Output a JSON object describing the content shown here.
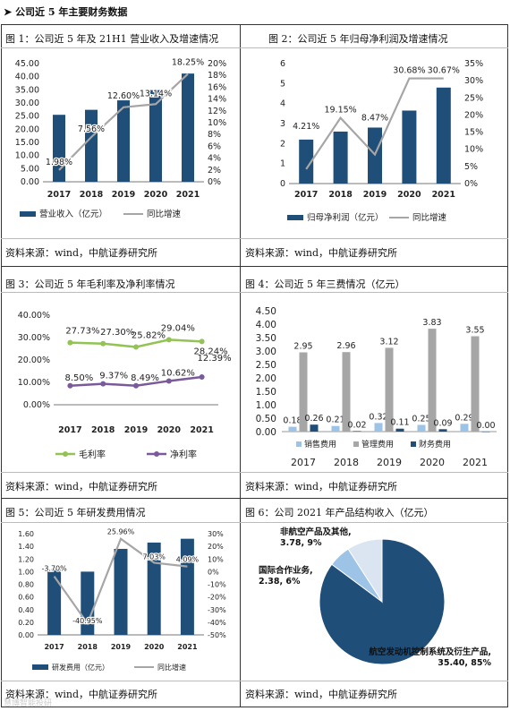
{
  "section": {
    "marker": "➤",
    "title": "公司近 5 年主要财务数据"
  },
  "source_text": "资料来源：wind，中航证券研究所",
  "watermark": "慧博智能投研",
  "colors": {
    "navy": "#1f4e79",
    "gray": "#a6a6a6",
    "green": "#92c353",
    "purple": "#7a5a9a",
    "lightblue": "#9dc3e6",
    "pie_dark": "#1f4e79",
    "pie_mid": "#9dc3e6",
    "pie_light": "#dbe5f1"
  },
  "chart_data": [
    {
      "id": "c1",
      "type": "bar",
      "title": "图 1：公司近 5 年及 21H1 营业收入及增速情况",
      "categories": [
        "2017",
        "2018",
        "2019",
        "2020",
        "2021"
      ],
      "series": [
        {
          "name": "营业收入（亿元）",
          "kind": "bar",
          "axis": "left",
          "values": [
            25.5,
            27.4,
            31.0,
            34.9,
            41.2
          ]
        },
        {
          "name": "同比增速",
          "kind": "line",
          "axis": "right",
          "values": [
            1.98,
            7.56,
            12.6,
            13.14,
            18.25
          ]
        }
      ],
      "data_labels": [
        "1.98%",
        "7.56%",
        "12.60%",
        "13.14%",
        "18.25%"
      ],
      "yticks_left": [
        "0.00",
        "5.00",
        "10.00",
        "15.00",
        "20.00",
        "25.00",
        "30.00",
        "35.00",
        "40.00",
        "45.00"
      ],
      "ylim_left": [
        0,
        45
      ],
      "yticks_right": [
        "0%",
        "2%",
        "4%",
        "6%",
        "8%",
        "10%",
        "12%",
        "14%",
        "16%",
        "18%",
        "20%"
      ],
      "ylim_right": [
        0,
        20
      ]
    },
    {
      "id": "c2",
      "type": "bar",
      "title": "图 2：公司近 5 年归母净利润及增速情况",
      "categories": [
        "2017",
        "2018",
        "2019",
        "2020",
        "2021"
      ],
      "series": [
        {
          "name": "归母净利润（亿元）",
          "kind": "bar",
          "axis": "left",
          "values": [
            2.2,
            2.6,
            2.8,
            3.65,
            4.8
          ]
        },
        {
          "name": "同比增速",
          "kind": "line",
          "axis": "right",
          "values": [
            4.21,
            19.15,
            8.47,
            30.68,
            30.67
          ]
        }
      ],
      "data_labels": [
        "4.21%",
        "19.15%",
        "8.47%",
        "30.68%",
        "30.67%"
      ],
      "yticks_left": [
        "0",
        "1",
        "2",
        "3",
        "4",
        "5",
        "6"
      ],
      "ylim_left": [
        0,
        6
      ],
      "yticks_right": [
        "0%",
        "5%",
        "10%",
        "15%",
        "20%",
        "25%",
        "30%",
        "35%"
      ],
      "ylim_right": [
        0,
        35
      ]
    },
    {
      "id": "c3",
      "type": "line",
      "title": "图 3：公司近 5 年毛利率及净利率情况",
      "categories": [
        "2017",
        "2018",
        "2019",
        "2020",
        "2021"
      ],
      "series": [
        {
          "name": "毛利率",
          "values": [
            27.73,
            27.3,
            25.82,
            29.04,
            28.24
          ]
        },
        {
          "name": "净利率",
          "values": [
            8.5,
            9.37,
            8.49,
            10.62,
            12.39
          ]
        }
      ],
      "data_labels": [
        [
          "27.73%",
          "27.30%",
          "25.82%",
          "29.04%",
          "28.24%"
        ],
        [
          "8.50%",
          "9.37%",
          "8.49%",
          "10.62%",
          "12.39%"
        ]
      ],
      "yticks": [
        "0.00%",
        "10.00%",
        "20.00%",
        "30.00%",
        "40.00%"
      ],
      "ylim": [
        0,
        40
      ]
    },
    {
      "id": "c4",
      "type": "bar",
      "title": "图 4：公司近 5 年三费情况（亿元）",
      "categories": [
        "2017",
        "2018",
        "2019",
        "2020",
        "2021"
      ],
      "series": [
        {
          "name": "销售费用",
          "values": [
            0.18,
            0.21,
            0.32,
            0.25,
            0.29
          ]
        },
        {
          "name": "管理费用",
          "values": [
            2.95,
            2.96,
            3.12,
            3.83,
            3.55
          ]
        },
        {
          "name": "财务费用",
          "values": [
            0.26,
            0.02,
            0.11,
            0.09,
            0.0
          ]
        }
      ],
      "data_labels": [
        [
          "0.18",
          "0.21",
          "0.32",
          "0.25",
          "0.29"
        ],
        [
          "2.95",
          "2.96",
          "3.12",
          "3.83",
          "3.55"
        ],
        [
          "0.26",
          "0.02",
          "0.11",
          "0.09",
          "0.00"
        ]
      ],
      "yticks": [
        "0.00",
        "0.50",
        "1.00",
        "1.50",
        "2.00",
        "2.50",
        "3.00",
        "3.50",
        "4.00",
        "4.50"
      ],
      "ylim": [
        0,
        4.5
      ]
    },
    {
      "id": "c5",
      "type": "bar",
      "title": "图 5：公司近 5 年研发费用情况",
      "categories": [
        "2017",
        "2018",
        "2019",
        "2020",
        "2021"
      ],
      "series": [
        {
          "name": "研发费用（亿元）",
          "kind": "bar",
          "axis": "left",
          "values": [
            1.04,
            1.0,
            1.36,
            1.46,
            1.52
          ]
        },
        {
          "name": "同比增速",
          "kind": "line",
          "axis": "right",
          "values": [
            -3.7,
            -40.95,
            25.96,
            7.03,
            4.09
          ]
        }
      ],
      "data_labels": [
        "-3.70%",
        "-40.95%",
        "25.96%",
        "7.03%",
        "4.09%"
      ],
      "yticks_left": [
        "0.00",
        "0.20",
        "0.40",
        "0.60",
        "0.80",
        "1.00",
        "1.20",
        "1.40",
        "1.60"
      ],
      "ylim_left": [
        0,
        1.6
      ],
      "yticks_right": [
        "-50%",
        "-40%",
        "-30%",
        "-20%",
        "-10%",
        "0%",
        "10%",
        "20%",
        "30%"
      ],
      "ylim_right": [
        -50,
        30
      ]
    },
    {
      "id": "c6",
      "type": "pie",
      "title": "图 6：公司 2021 年产品结构收入（亿元）",
      "slices": [
        {
          "name": "航空发动机控制系统及衍生产品",
          "value": 35.4,
          "pct": 85,
          "label": "航空发动机控制系统及衍生产品, 35.40, 85%"
        },
        {
          "name": "国际合作业务",
          "value": 2.38,
          "pct": 6,
          "label": "国际合作业务, 2.38, 6%"
        },
        {
          "name": "非航空产品及其他",
          "value": 3.78,
          "pct": 9,
          "label": "非航空产品及其他, 3.78, 9%"
        }
      ]
    }
  ]
}
